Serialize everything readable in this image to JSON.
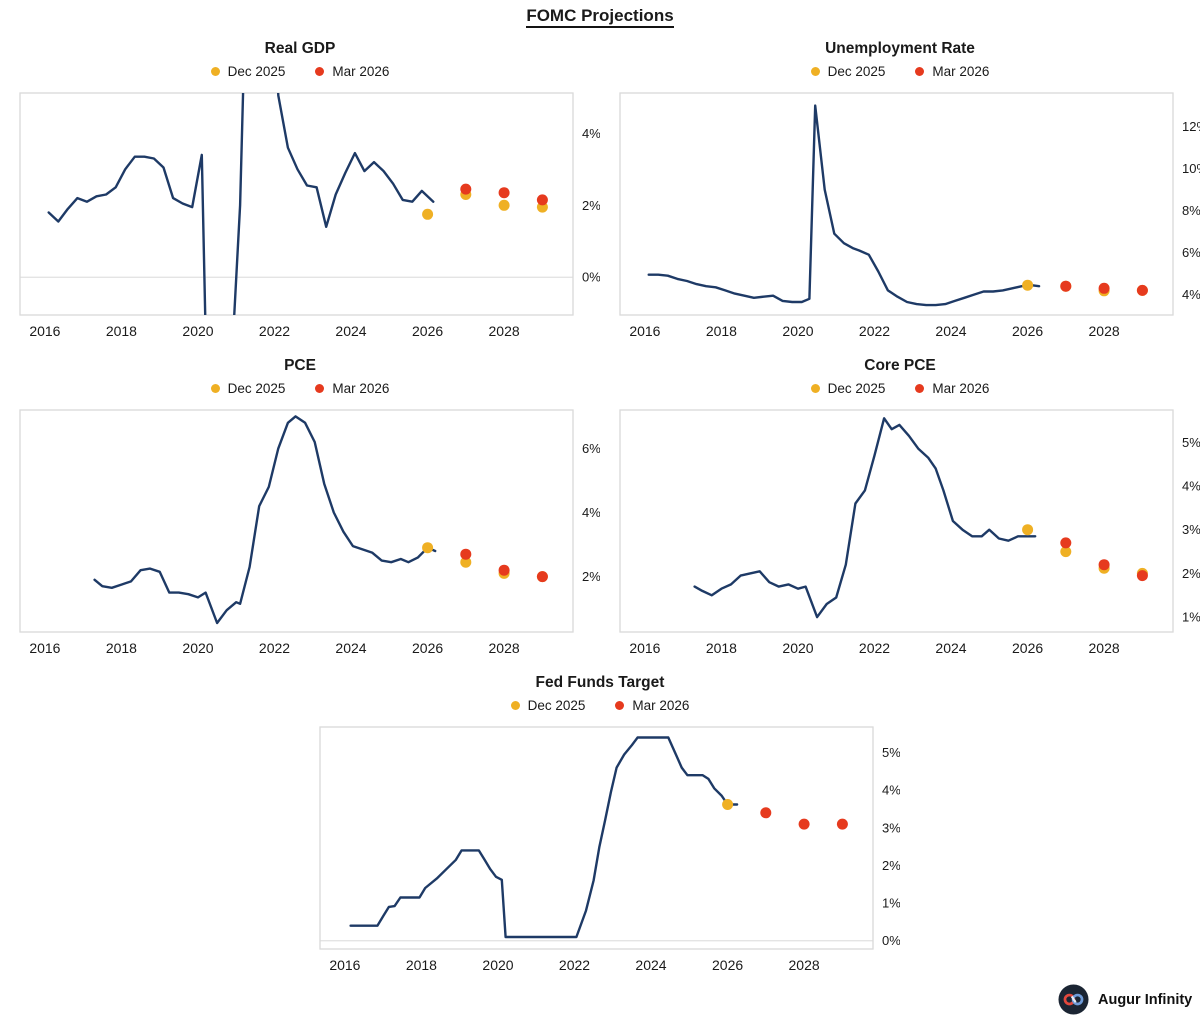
{
  "page": {
    "title": "FOMC Projections"
  },
  "footer": {
    "brand": "Augur Infinity"
  },
  "colors": {
    "line": "#1e3a66",
    "dec2025": "#efb024",
    "mar2026": "#e63a1e",
    "border": "#d9d9d9",
    "gridline": "#e0e0e0",
    "text": "#1a1a1a",
    "logo_bg": "#1b2533",
    "logo_left_loop": "#e2483d",
    "logo_right_loop": "#6f9bd8"
  },
  "chart_data": [
    {
      "type": "line",
      "title": "Real GDP",
      "xlim": [
        2015.35,
        2029.8
      ],
      "ylim": [
        -1.05,
        5.12
      ],
      "x_ticks": [
        2016,
        2018,
        2020,
        2022,
        2024,
        2026,
        2028
      ],
      "y_ticks": [
        0,
        2,
        4
      ],
      "y_tick_suffix": "%",
      "gridlines": [
        0
      ],
      "series": [
        {
          "name": "history",
          "type": "line",
          "x": [
            2016.1,
            2016.35,
            2016.6,
            2016.85,
            2017.1,
            2017.35,
            2017.6,
            2017.85,
            2018.1,
            2018.35,
            2018.6,
            2018.85,
            2019.1,
            2019.35,
            2019.6,
            2019.85,
            2020.1,
            2020.35,
            2020.6,
            2020.85,
            2021.1,
            2021.35,
            2021.6,
            2021.85,
            2022.1,
            2022.35,
            2022.6,
            2022.85,
            2023.1,
            2023.35,
            2023.6,
            2023.85,
            2024.1,
            2024.35,
            2024.6,
            2024.85,
            2025.1,
            2025.35,
            2025.6,
            2025.85,
            2026.15
          ],
          "y": [
            1.8,
            1.55,
            1.9,
            2.2,
            2.1,
            2.25,
            2.3,
            2.5,
            3.0,
            3.35,
            3.35,
            3.3,
            3.05,
            2.2,
            2.05,
            1.95,
            3.4,
            -9,
            -8,
            -3,
            2,
            12,
            12.5,
            11,
            5.05,
            3.6,
            3.0,
            2.55,
            2.5,
            1.4,
            2.3,
            2.9,
            3.45,
            2.95,
            3.2,
            2.95,
            2.6,
            2.15,
            2.1,
            2.4,
            2.1
          ]
        },
        {
          "name": "Dec 2025",
          "type": "scatter",
          "color_key": "dec2025",
          "x": [
            2026,
            2027,
            2028,
            2029
          ],
          "y": [
            1.75,
            2.3,
            2.0,
            1.95
          ]
        },
        {
          "name": "Mar 2026",
          "type": "scatter",
          "color_key": "mar2026",
          "x": [
            2027,
            2028,
            2029
          ],
          "y": [
            2.45,
            2.35,
            2.15
          ]
        }
      ]
    },
    {
      "type": "line",
      "title": "Unemployment Rate",
      "xlim": [
        2015.35,
        2029.8
      ],
      "ylim": [
        3.03,
        13.6
      ],
      "x_ticks": [
        2016,
        2018,
        2020,
        2022,
        2024,
        2026,
        2028
      ],
      "y_ticks": [
        4,
        6,
        8,
        10,
        12
      ],
      "y_tick_suffix": "%",
      "gridlines": [],
      "series": [
        {
          "name": "history",
          "type": "line",
          "x": [
            2016.1,
            2016.35,
            2016.6,
            2016.85,
            2017.1,
            2017.35,
            2017.6,
            2017.85,
            2018.1,
            2018.35,
            2018.6,
            2018.85,
            2019.1,
            2019.35,
            2019.6,
            2019.85,
            2020.1,
            2020.3,
            2020.45,
            2020.7,
            2020.95,
            2021.2,
            2021.45,
            2021.6,
            2021.85,
            2022.1,
            2022.35,
            2022.6,
            2022.85,
            2023.1,
            2023.35,
            2023.6,
            2023.85,
            2024.1,
            2024.35,
            2024.6,
            2024.85,
            2025.1,
            2025.35,
            2025.6,
            2025.85,
            2026.1,
            2026.3
          ],
          "y": [
            4.95,
            4.95,
            4.9,
            4.75,
            4.65,
            4.5,
            4.4,
            4.35,
            4.2,
            4.05,
            3.95,
            3.85,
            3.9,
            3.95,
            3.7,
            3.65,
            3.65,
            3.8,
            13.0,
            9.0,
            6.9,
            6.45,
            6.2,
            6.1,
            5.9,
            5.1,
            4.2,
            3.9,
            3.65,
            3.55,
            3.5,
            3.5,
            3.55,
            3.7,
            3.85,
            4.0,
            4.15,
            4.15,
            4.2,
            4.3,
            4.4,
            4.45,
            4.4
          ]
        },
        {
          "name": "Dec 2025",
          "type": "scatter",
          "color_key": "dec2025",
          "x": [
            2026,
            2027,
            2028,
            2029
          ],
          "y": [
            4.45,
            4.4,
            4.18,
            4.2
          ]
        },
        {
          "name": "Mar 2026",
          "type": "scatter",
          "color_key": "mar2026",
          "x": [
            2027,
            2028,
            2029
          ],
          "y": [
            4.4,
            4.3,
            4.2
          ]
        }
      ]
    },
    {
      "type": "line",
      "title": "PCE",
      "xlim": [
        2015.35,
        2029.8
      ],
      "ylim": [
        0.27,
        7.2
      ],
      "x_ticks": [
        2016,
        2018,
        2020,
        2022,
        2024,
        2026,
        2028
      ],
      "y_ticks": [
        2,
        4,
        6
      ],
      "y_tick_suffix": "%",
      "gridlines": [],
      "series": [
        {
          "name": "history",
          "type": "line",
          "x": [
            2017.3,
            2017.5,
            2017.75,
            2018.0,
            2018.25,
            2018.5,
            2018.75,
            2019.0,
            2019.25,
            2019.5,
            2019.75,
            2020.0,
            2020.2,
            2020.5,
            2020.75,
            2021.0,
            2021.1,
            2021.35,
            2021.6,
            2021.85,
            2022.1,
            2022.35,
            2022.55,
            2022.8,
            2023.05,
            2023.3,
            2023.55,
            2023.8,
            2024.05,
            2024.3,
            2024.55,
            2024.8,
            2025.05,
            2025.3,
            2025.5,
            2025.75,
            2026.0,
            2026.2
          ],
          "y": [
            1.9,
            1.7,
            1.65,
            1.75,
            1.85,
            2.2,
            2.25,
            2.15,
            1.5,
            1.5,
            1.45,
            1.35,
            1.5,
            0.55,
            0.95,
            1.2,
            1.15,
            2.3,
            4.2,
            4.8,
            6.0,
            6.8,
            7.0,
            6.8,
            6.2,
            4.9,
            4.0,
            3.4,
            2.95,
            2.85,
            2.75,
            2.5,
            2.45,
            2.55,
            2.45,
            2.6,
            2.9,
            2.8
          ]
        },
        {
          "name": "Dec 2025",
          "type": "scatter",
          "color_key": "dec2025",
          "x": [
            2026,
            2027,
            2028,
            2029
          ],
          "y": [
            2.9,
            2.45,
            2.1,
            2.0
          ]
        },
        {
          "name": "Mar 2026",
          "type": "scatter",
          "color_key": "mar2026",
          "x": [
            2027,
            2028,
            2029
          ],
          "y": [
            2.7,
            2.2,
            2.0
          ]
        }
      ]
    },
    {
      "type": "line",
      "title": "Core PCE",
      "xlim": [
        2015.35,
        2029.8
      ],
      "ylim": [
        0.66,
        5.74
      ],
      "x_ticks": [
        2016,
        2018,
        2020,
        2022,
        2024,
        2026,
        2028
      ],
      "y_ticks": [
        1,
        2,
        3,
        4,
        5
      ],
      "y_tick_suffix": "%",
      "gridlines": [],
      "series": [
        {
          "name": "history",
          "type": "line",
          "x": [
            2017.3,
            2017.5,
            2017.75,
            2018.0,
            2018.25,
            2018.5,
            2018.75,
            2019.0,
            2019.25,
            2019.5,
            2019.75,
            2020.0,
            2020.2,
            2020.5,
            2020.75,
            2021.0,
            2021.25,
            2021.5,
            2021.75,
            2022.0,
            2022.25,
            2022.45,
            2022.65,
            2022.9,
            2023.15,
            2023.4,
            2023.6,
            2023.8,
            2024.05,
            2024.3,
            2024.55,
            2024.8,
            2025.0,
            2025.25,
            2025.5,
            2025.75,
            2026.0,
            2026.2
          ],
          "y": [
            1.7,
            1.6,
            1.5,
            1.65,
            1.75,
            1.95,
            2.0,
            2.05,
            1.8,
            1.7,
            1.75,
            1.65,
            1.7,
            1.0,
            1.3,
            1.45,
            2.2,
            3.6,
            3.9,
            4.7,
            5.55,
            5.3,
            5.4,
            5.15,
            4.85,
            4.65,
            4.4,
            3.9,
            3.2,
            3.0,
            2.85,
            2.85,
            3.0,
            2.8,
            2.75,
            2.85,
            2.85,
            2.85
          ]
        },
        {
          "name": "Dec 2025",
          "type": "scatter",
          "color_key": "dec2025",
          "x": [
            2026,
            2027,
            2028,
            2029
          ],
          "y": [
            3.0,
            2.5,
            2.12,
            2.0
          ]
        },
        {
          "name": "Mar 2026",
          "type": "scatter",
          "color_key": "mar2026",
          "x": [
            2027,
            2028,
            2029
          ],
          "y": [
            2.7,
            2.2,
            1.95
          ]
        }
      ]
    },
    {
      "type": "line",
      "title": "Fed Funds Target",
      "xlim": [
        2015.35,
        2029.8
      ],
      "ylim": [
        -0.22,
        5.68
      ],
      "x_ticks": [
        2016,
        2018,
        2020,
        2022,
        2024,
        2026,
        2028
      ],
      "y_ticks": [
        0,
        1,
        2,
        3,
        4,
        5
      ],
      "y_tick_suffix": "%",
      "gridlines": [
        0
      ],
      "series": [
        {
          "name": "history",
          "type": "line",
          "x": [
            2016.15,
            2016.85,
            2017.0,
            2017.15,
            2017.3,
            2017.45,
            2017.95,
            2018.1,
            2018.4,
            2018.65,
            2018.9,
            2019.05,
            2019.5,
            2019.65,
            2019.8,
            2019.95,
            2020.1,
            2020.2,
            2022.05,
            2022.3,
            2022.5,
            2022.65,
            2022.8,
            2022.95,
            2023.1,
            2023.3,
            2023.5,
            2023.65,
            2024.45,
            2024.65,
            2024.8,
            2024.95,
            2025.35,
            2025.5,
            2025.65,
            2025.85,
            2026.0,
            2026.25
          ],
          "y": [
            0.4,
            0.4,
            0.65,
            0.9,
            0.92,
            1.15,
            1.15,
            1.4,
            1.65,
            1.9,
            2.15,
            2.4,
            2.4,
            2.15,
            1.9,
            1.7,
            1.62,
            0.1,
            0.1,
            0.8,
            1.6,
            2.5,
            3.2,
            3.95,
            4.6,
            4.95,
            5.2,
            5.4,
            5.4,
            4.95,
            4.6,
            4.4,
            4.4,
            4.3,
            4.05,
            3.85,
            3.62,
            3.62
          ]
        },
        {
          "name": "Dec 2025",
          "type": "scatter",
          "color_key": "dec2025",
          "x": [
            2026
          ],
          "y": [
            3.62
          ]
        },
        {
          "name": "Mar 2026",
          "type": "scatter",
          "color_key": "mar2026",
          "x": [
            2027,
            2028,
            2029
          ],
          "y": [
            3.4,
            3.1,
            3.1
          ]
        }
      ]
    }
  ]
}
